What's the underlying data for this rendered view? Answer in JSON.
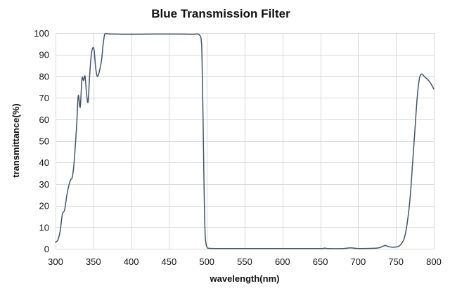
{
  "chart_data": {
    "type": "line",
    "title": "Blue Transmission Filter",
    "xlabel": "wavelength(nm)",
    "ylabel": "transmittance(%)",
    "xlim": [
      300,
      800
    ],
    "ylim": [
      0,
      100
    ],
    "x_ticks": [
      300,
      350,
      400,
      450,
      500,
      550,
      600,
      650,
      700,
      750,
      800
    ],
    "y_ticks": [
      0,
      10,
      20,
      30,
      40,
      50,
      60,
      70,
      80,
      90,
      100
    ],
    "grid": true,
    "legend": "none",
    "line_color": "#44546a",
    "series": [
      {
        "x": [
          300,
          303,
          306,
          309,
          312,
          315,
          318,
          320,
          322,
          324,
          326,
          328,
          330,
          332,
          333,
          335,
          337,
          339,
          341,
          343,
          345,
          347,
          349,
          351,
          353,
          355,
          357,
          359,
          361,
          363,
          365,
          367,
          370,
          380,
          400,
          430,
          460,
          480,
          490,
          493,
          494,
          495,
          496,
          497,
          498,
          500,
          503,
          510,
          520,
          550,
          600,
          650,
          655,
          660,
          680,
          690,
          700,
          720,
          728,
          733,
          736,
          740,
          745,
          750,
          755,
          760,
          763,
          766,
          769,
          772,
          775,
          778,
          781,
          784,
          787,
          790,
          793,
          797,
          800
        ],
        "y": [
          3,
          4,
          8,
          16,
          18,
          25,
          30,
          32,
          33,
          38,
          47,
          58,
          71,
          66,
          67,
          79,
          78,
          80,
          72,
          68,
          80,
          89,
          93,
          92,
          84,
          80,
          81,
          84,
          88,
          95,
          99.5,
          99.7,
          99.6,
          99.5,
          99.4,
          99.5,
          99.5,
          99.4,
          99.2,
          95,
          80,
          60,
          35,
          15,
          5,
          0.8,
          0.2,
          0.1,
          0.1,
          0.1,
          0.1,
          0.1,
          0.3,
          0.1,
          0.1,
          0.4,
          0.1,
          0.2,
          0.5,
          1.2,
          1.5,
          1.0,
          0.7,
          0.8,
          1.5,
          4,
          8,
          15,
          25,
          40,
          55,
          70,
          79,
          81,
          80,
          79,
          78,
          76,
          74
        ]
      }
    ]
  }
}
